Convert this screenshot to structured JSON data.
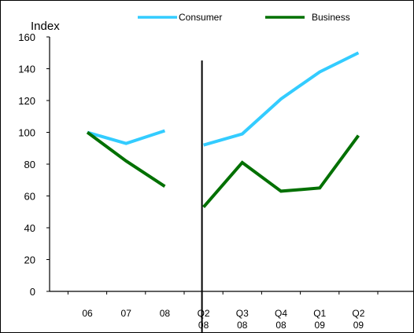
{
  "chart_data": {
    "type": "line",
    "ylabel": "Index",
    "ylim": [
      0,
      160
    ],
    "yticks": [
      0,
      20,
      40,
      60,
      80,
      100,
      120,
      140,
      160
    ],
    "grid": false,
    "legend_position": "top",
    "categories": [
      {
        "line1": "06",
        "line2": ""
      },
      {
        "line1": "07",
        "line2": ""
      },
      {
        "line1": "08",
        "line2": ""
      },
      {
        "line1": "Q2",
        "line2": "08"
      },
      {
        "line1": "Q3",
        "line2": "08"
      },
      {
        "line1": "Q4",
        "line2": "08"
      },
      {
        "line1": "Q1",
        "line2": "09"
      },
      {
        "line1": "Q2",
        "line2": "09"
      }
    ],
    "segments": [
      [
        0,
        2
      ],
      [
        3,
        7
      ]
    ],
    "divider_after_category": 2,
    "series": [
      {
        "name": "Consumer",
        "color": "#33ccff",
        "values": [
          100,
          93,
          101,
          92,
          99,
          121,
          138,
          150
        ]
      },
      {
        "name": "Business",
        "color": "#007000",
        "values": [
          100,
          82,
          66,
          53,
          81,
          63,
          65,
          98
        ]
      }
    ]
  }
}
